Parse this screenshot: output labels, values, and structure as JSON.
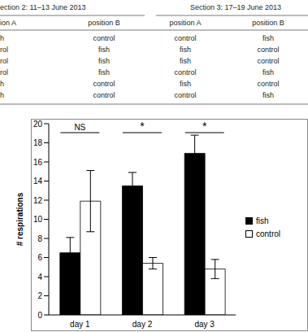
{
  "table": {
    "section_headers": [
      "ection 2: 11–13 June 2013",
      "Section 3: 17–19 June 2013"
    ],
    "columns": [
      "ion A",
      "position B",
      "position A",
      "position B"
    ],
    "rows": [
      [
        "h",
        "control",
        "control",
        "fish"
      ],
      [
        "rol",
        "fish",
        "fish",
        "control"
      ],
      [
        "rol",
        "fish",
        "fish",
        "control"
      ],
      [
        "rol",
        "fish",
        "control",
        "fish"
      ],
      [
        "h",
        "control",
        "fish",
        "control"
      ],
      [
        "h",
        "control",
        "control",
        "fish"
      ]
    ]
  },
  "chart_data": {
    "type": "bar",
    "categories": [
      "day 1",
      "day 2",
      "day 3"
    ],
    "series": [
      {
        "name": "fish",
        "color": "#000000",
        "values": [
          6.5,
          13.5,
          16.9
        ],
        "errors": [
          1.6,
          1.4,
          1.9
        ]
      },
      {
        "name": "control",
        "color": "#ffffff",
        "values": [
          11.9,
          5.4,
          4.8
        ],
        "errors": [
          3.2,
          0.6,
          1.0
        ]
      }
    ],
    "ylabel": "# respirations",
    "ylim": [
      0,
      20
    ],
    "yticks": [
      0,
      2,
      4,
      6,
      8,
      10,
      12,
      14,
      16,
      18,
      20
    ],
    "legend": "right",
    "annotations": [
      {
        "text": "NS",
        "category": "day 1"
      },
      {
        "text": "*",
        "category": "day 2"
      },
      {
        "text": "*",
        "category": "day 3"
      }
    ]
  }
}
